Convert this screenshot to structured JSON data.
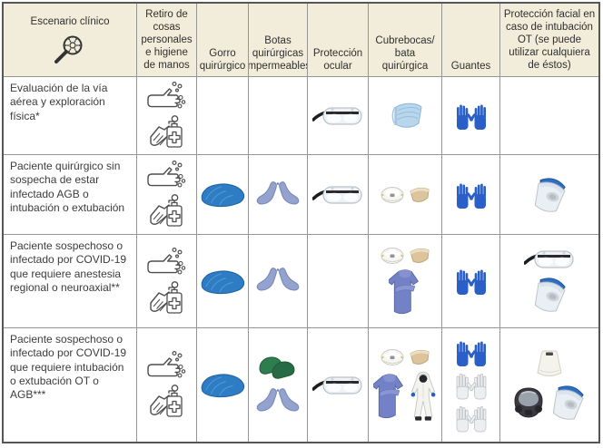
{
  "colors": {
    "header_bg": "#f2edda",
    "outer_border": "#565656",
    "grid_line": "#959595",
    "text": "#3c3c3c",
    "cap_blue": "#2e7cc3",
    "glove_blue": "#2a5fc8",
    "shoe_cover_blue": "#94a3cd",
    "clog_green": "#2e7d4f",
    "gown_blue": "#7381c7",
    "mask_blue": "#b9d6ec",
    "fluid_mask_tan": "#dcc49c",
    "n95_white": "#f6f6f3"
  },
  "table": {
    "columns": [
      {
        "key": "escenario",
        "label": "Escenario clínico",
        "icon": "magnifier-virus"
      },
      {
        "key": "retiro",
        "label": "Retiro de cosas personales e higiene de manos"
      },
      {
        "key": "gorro",
        "label": "Gorro quirúrgico"
      },
      {
        "key": "botas",
        "label": "Botas quirúrgicas impermeables"
      },
      {
        "key": "ocular",
        "label": "Protección ocular"
      },
      {
        "key": "cubrebocas",
        "label": "Cubrebocas/ bata quirúrgica"
      },
      {
        "key": "guantes",
        "label": "Guantes"
      },
      {
        "key": "facial",
        "label": "Protección facial en caso de intubación OT (se puede utilizar cualquiera de éstos)"
      }
    ],
    "rows": [
      {
        "scenario": "Evaluación de la vía aérea y exploración física*",
        "cells": {
          "retiro": [
            [
              "handwash"
            ],
            [
              "sanitizer-bottle"
            ]
          ],
          "gorro": [],
          "botas": [],
          "ocular": [
            [
              "safety-goggles"
            ]
          ],
          "cubrebocas": [
            [
              "surgical-mask"
            ]
          ],
          "guantes": [
            [
              "nitrile-gloves-blue"
            ]
          ],
          "facial": []
        }
      },
      {
        "scenario": "Paciente quirúrgico sin sospecha de estar infectado AGB o intubación o extubación",
        "cells": {
          "retiro": [
            [
              "handwash"
            ],
            [
              "sanitizer-bottle"
            ]
          ],
          "gorro": [
            [
              "surgical-cap"
            ]
          ],
          "botas": [
            [
              "shoe-covers"
            ]
          ],
          "ocular": [
            [
              "safety-goggles"
            ]
          ],
          "cubrebocas": [
            [
              "n95-respirator",
              "fluid-shield-mask"
            ]
          ],
          "guantes": [
            [
              "nitrile-gloves-blue"
            ]
          ],
          "facial": [
            [
              "face-shield"
            ]
          ]
        }
      },
      {
        "scenario": "Paciente sospechoso o infectado por COVID-19 que requiere anestesia regional o neuroaxial**",
        "cells": {
          "retiro": [
            [
              "handwash"
            ],
            [
              "sanitizer-bottle"
            ]
          ],
          "gorro": [
            [
              "surgical-cap"
            ]
          ],
          "botas": [
            [
              "shoe-covers"
            ]
          ],
          "ocular": [],
          "cubrebocas": [
            [
              "n95-respirator",
              "fluid-shield-mask"
            ],
            [
              "surgical-gown"
            ]
          ],
          "guantes": [
            [
              "nitrile-gloves-blue"
            ]
          ],
          "facial": [
            [
              "safety-goggles"
            ],
            [
              "face-shield"
            ]
          ]
        }
      },
      {
        "scenario": "Paciente sospechoso o infectado por COVID-19 que requiere intubación o extubación OT o AGB***",
        "cells": {
          "retiro": [
            [
              "handwash"
            ],
            [
              "sanitizer-bottle"
            ]
          ],
          "gorro": [
            [
              "surgical-cap"
            ]
          ],
          "botas": [
            [
              "surgical-clogs"
            ],
            [
              "shoe-covers"
            ]
          ],
          "ocular": [
            [
              "safety-goggles"
            ]
          ],
          "cubrebocas": [
            [
              "n95-respirator",
              "fluid-shield-mask"
            ],
            [
              "surgical-gown",
              "coverall-suit"
            ]
          ],
          "guantes": [
            [
              "nitrile-gloves-blue"
            ],
            [
              "sterile-gloves-white"
            ],
            [
              "sterile-gloves-white"
            ]
          ],
          "facial": [
            [
              "papr-hood"
            ],
            [
              "full-face-respirator",
              "face-shield"
            ]
          ]
        }
      }
    ]
  }
}
